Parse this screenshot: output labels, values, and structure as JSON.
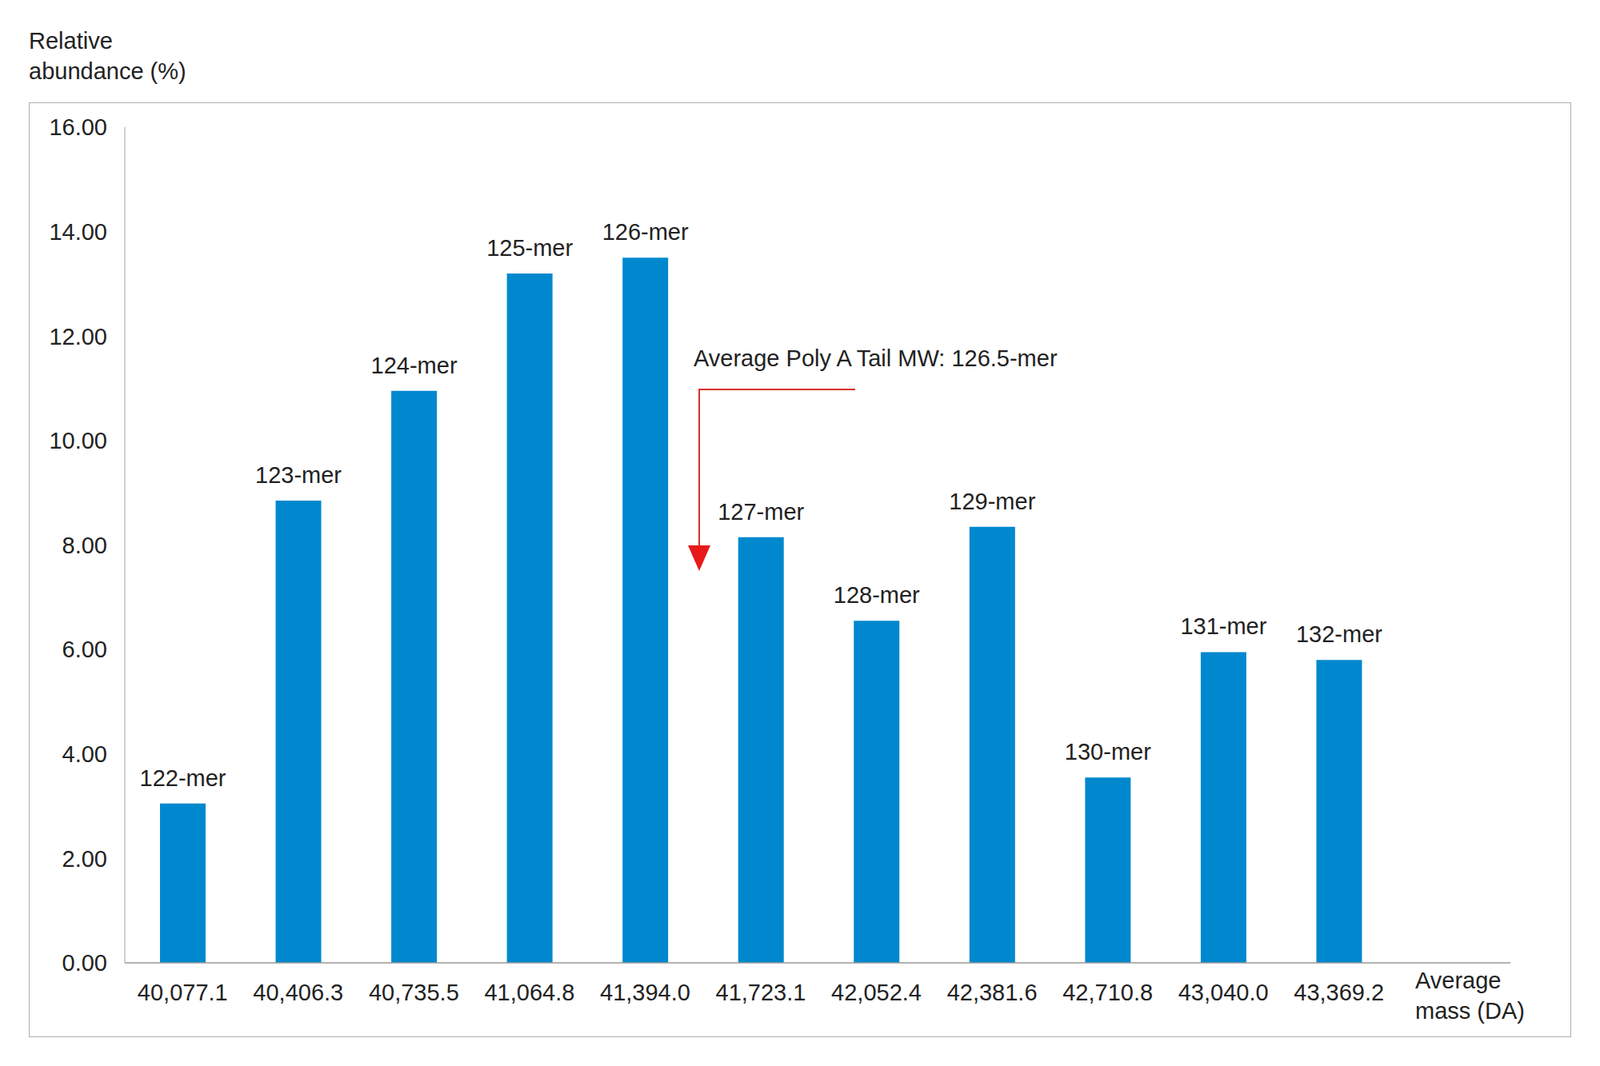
{
  "chart_data": {
    "type": "bar",
    "y_label": "Relative abundance (%)",
    "x_label": "Average mass (DA)",
    "annotation": "Average Poly A Tail MW: 126.5-mer",
    "categories": [
      "40,077.1",
      "40,406.3",
      "40,735.5",
      "41,064.8",
      "41,394.0",
      "41,723.1",
      "42,052.4",
      "42,381.6",
      "42,710.8",
      "43,040.0",
      "43,369.2"
    ],
    "values": [
      3.05,
      8.85,
      10.95,
      13.2,
      13.5,
      8.15,
      6.55,
      8.35,
      3.55,
      5.95,
      5.8
    ],
    "bar_labels": [
      "122-mer",
      "123-mer",
      "124-mer",
      "125-mer",
      "126-mer",
      "127-mer",
      "128-mer",
      "129-mer",
      "130-mer",
      "131-mer",
      "132-mer"
    ],
    "color": "#0088ce",
    "ylim": [
      0,
      16
    ],
    "yticks": [
      {
        "value": 0,
        "label": "0.00"
      },
      {
        "value": 2,
        "label": "2.00"
      },
      {
        "value": 4,
        "label": "4.00"
      },
      {
        "value": 6,
        "label": "6.00"
      },
      {
        "value": 8,
        "label": "8.00"
      },
      {
        "value": 10,
        "label": "10.00"
      },
      {
        "value": 12,
        "label": "12.00"
      },
      {
        "value": 14,
        "label": "14.00"
      },
      {
        "value": 16,
        "label": "16.00"
      }
    ],
    "grid": false
  }
}
